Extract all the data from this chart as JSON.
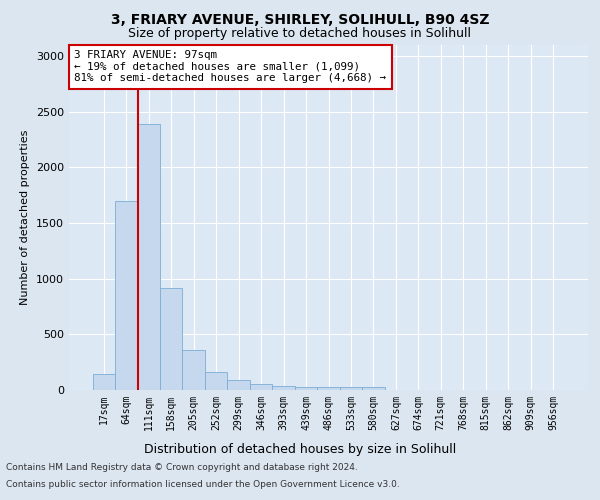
{
  "title1": "3, FRIARY AVENUE, SHIRLEY, SOLIHULL, B90 4SZ",
  "title2": "Size of property relative to detached houses in Solihull",
  "xlabel": "Distribution of detached houses by size in Solihull",
  "ylabel": "Number of detached properties",
  "categories": [
    "17sqm",
    "64sqm",
    "111sqm",
    "158sqm",
    "205sqm",
    "252sqm",
    "299sqm",
    "346sqm",
    "393sqm",
    "439sqm",
    "486sqm",
    "533sqm",
    "580sqm",
    "627sqm",
    "674sqm",
    "721sqm",
    "768sqm",
    "815sqm",
    "862sqm",
    "909sqm",
    "956sqm"
  ],
  "values": [
    140,
    1700,
    2390,
    920,
    355,
    160,
    90,
    55,
    40,
    30,
    25,
    25,
    30,
    0,
    0,
    0,
    0,
    0,
    0,
    0,
    0
  ],
  "bar_color": "#c5d8ed",
  "bar_edge_color": "#7aadd4",
  "annotation_text": "3 FRIARY AVENUE: 97sqm\n← 19% of detached houses are smaller (1,099)\n81% of semi-detached houses are larger (4,668) →",
  "annotation_box_color": "white",
  "annotation_box_edge_color": "#cc0000",
  "vline_color": "#cc0000",
  "vline_x": 1.5,
  "ylim": [
    0,
    3100
  ],
  "yticks": [
    0,
    500,
    1000,
    1500,
    2000,
    2500,
    3000
  ],
  "footer1": "Contains HM Land Registry data © Crown copyright and database right 2024.",
  "footer2": "Contains public sector information licensed under the Open Government Licence v3.0.",
  "bg_color": "#dce6f0",
  "plot_bg_color": "#dde8f5",
  "title1_fontsize": 10,
  "title2_fontsize": 9,
  "annotation_fontsize": 7.8,
  "ylabel_fontsize": 8,
  "xlabel_fontsize": 9,
  "tick_fontsize": 7
}
